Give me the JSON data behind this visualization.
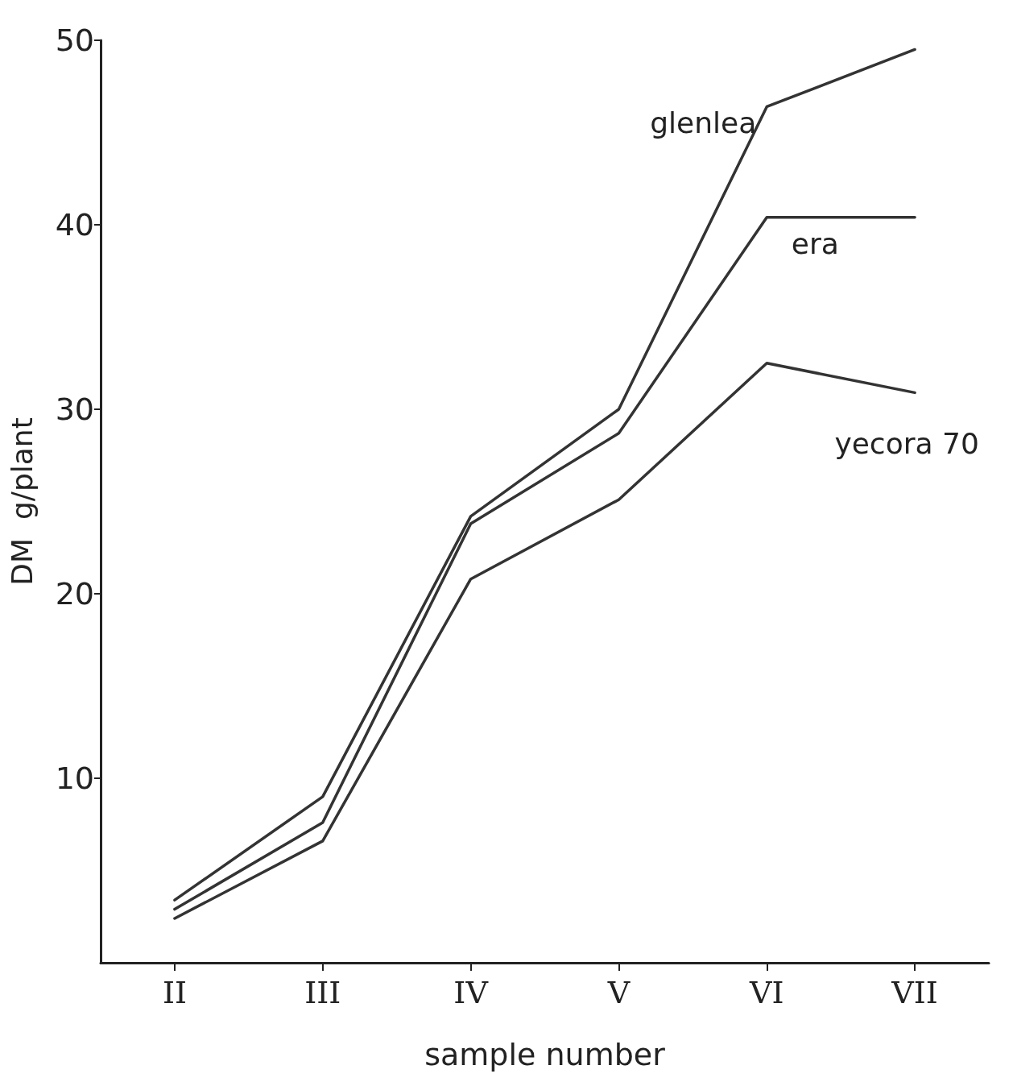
{
  "chart_data": {
    "type": "line",
    "xlabel": "sample number",
    "ylabel": "DM  g/plant",
    "categories": [
      "II",
      "III",
      "IV",
      "V",
      "VI",
      "VII"
    ],
    "series": [
      {
        "name": "glenlea",
        "color": "#333333",
        "values": [
          3.4,
          9.0,
          24.2,
          30.0,
          46.4,
          49.5
        ]
      },
      {
        "name": "era",
        "color": "#333333",
        "values": [
          2.9,
          7.6,
          23.8,
          28.7,
          40.4,
          40.4
        ]
      },
      {
        "name": "yecora 70",
        "color": "#333333",
        "values": [
          2.4,
          6.6,
          20.8,
          25.1,
          32.5,
          30.9
        ]
      }
    ],
    "ylim": [
      0,
      50
    ],
    "yticks": [
      10,
      20,
      30,
      40,
      50
    ],
    "grid": false,
    "legend": false,
    "marker": "none",
    "line_style": "solid"
  }
}
